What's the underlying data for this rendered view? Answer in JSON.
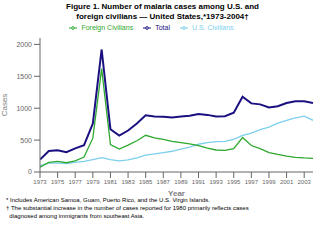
{
  "chart_data": {
    "type": "line",
    "title": "Figure 1. Number of malaria cases among U.S. and\nforeign civilians — United States,*1973-2004†",
    "x_label": "Year",
    "y_label": "Cases",
    "annotations": [
      "* Includes American Samoa, Guam, Puerto Rico, and the U.S. Virgin Islands.",
      "† The substantial increase in the number of cases reported for 1980 primarily reflects cases",
      "  diagnosed among immigrants from southeast Asia."
    ],
    "x": [
      1973,
      1974,
      1975,
      1976,
      1977,
      1978,
      1979,
      1980,
      1981,
      1982,
      1983,
      1984,
      1985,
      1986,
      1987,
      1988,
      1989,
      1990,
      1991,
      1992,
      1993,
      1994,
      1995,
      1996,
      1997,
      1998,
      1999,
      2000,
      2001,
      2002,
      2003,
      2004
    ],
    "series": [
      {
        "name": "U.S. Civilians",
        "color": "#7dcfed",
        "values": [
          100,
          140,
          140,
          130,
          150,
          165,
          195,
          225,
          195,
          175,
          190,
          220,
          265,
          285,
          305,
          325,
          360,
          390,
          435,
          460,
          475,
          480,
          510,
          575,
          610,
          665,
          705,
          765,
          810,
          850,
          875,
          810
        ]
      },
      {
        "name": "Foreign Civilians",
        "color": "#2ea82e",
        "values": [
          75,
          150,
          165,
          145,
          175,
          235,
          530,
          1620,
          430,
          360,
          420,
          490,
          575,
          535,
          510,
          480,
          460,
          440,
          415,
          375,
          345,
          340,
          365,
          540,
          415,
          365,
          305,
          275,
          250,
          230,
          220,
          215
        ]
      },
      {
        "name": "Total",
        "color": "#1a1080",
        "values": [
          195,
          330,
          340,
          310,
          370,
          420,
          760,
          1920,
          670,
          570,
          650,
          760,
          890,
          870,
          865,
          855,
          870,
          880,
          910,
          895,
          870,
          875,
          930,
          1180,
          1075,
          1060,
          1010,
          1030,
          1080,
          1110,
          1110,
          1080
        ]
      }
    ],
    "xlim": [
      1973,
      2004
    ],
    "xticks": [
      1973,
      1975,
      1977,
      1979,
      1981,
      1983,
      1985,
      1987,
      1989,
      1991,
      1993,
      1995,
      1997,
      1999,
      2001,
      2003
    ],
    "ylim": [
      0,
      2100
    ],
    "yticks": [
      0,
      500,
      1000,
      1500,
      2000
    ],
    "grid": false,
    "legend": "top"
  }
}
